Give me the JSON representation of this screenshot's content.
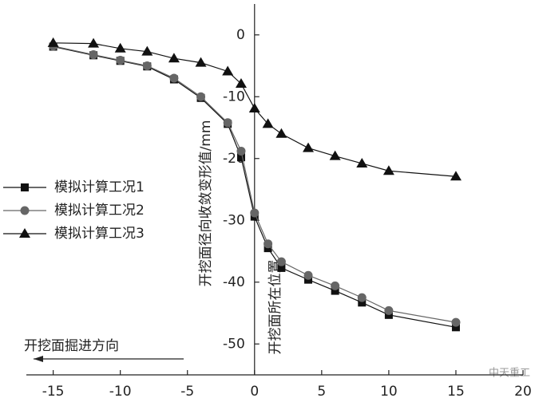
{
  "chart_data": {
    "type": "line",
    "y_label": "开挖面径向收敛变形值/mm",
    "annotations": [
      "开挖面所在位置",
      "开挖面掘进方向"
    ],
    "watermark": "中天重工",
    "x": [
      -15,
      -12,
      -10,
      -8,
      -6,
      -4,
      -2,
      -1,
      0,
      1,
      2,
      4,
      6,
      8,
      10,
      15
    ],
    "series": [
      {
        "name": "模拟计算工况1",
        "color": "#111111",
        "marker": "square",
        "values": [
          -1.9,
          -3.3,
          -4.2,
          -5.1,
          -7.2,
          -10.2,
          -14.4,
          -19.8,
          -29.4,
          -34.5,
          -37.7,
          -39.6,
          -41.4,
          -43.3,
          -45.3,
          -47.3
        ]
      },
      {
        "name": "模拟计算工况2",
        "color": "#666666",
        "marker": "circle",
        "values": [
          -1.8,
          -3.2,
          -4.1,
          -5.0,
          -7.0,
          -10.0,
          -14.2,
          -18.8,
          -28.8,
          -33.8,
          -36.7,
          -38.9,
          -40.6,
          -42.5,
          -44.6,
          -46.5
        ]
      },
      {
        "name": "模拟计算工况3",
        "color": "#111111",
        "marker": "triangle",
        "values": [
          -1.3,
          -1.4,
          -2.2,
          -2.7,
          -3.8,
          -4.5,
          -5.9,
          -7.9,
          -11.9,
          -14.4,
          -16.0,
          -18.3,
          -19.6,
          -20.8,
          -22.0,
          -22.9
        ]
      }
    ],
    "xlim": [
      -17,
      20
    ],
    "ylim": [
      -55,
      5
    ],
    "xticks": [
      -15,
      -10,
      -5,
      0,
      5,
      10,
      15,
      20
    ],
    "yticks": [
      0,
      -10,
      -20,
      -30,
      -40,
      -50
    ]
  }
}
